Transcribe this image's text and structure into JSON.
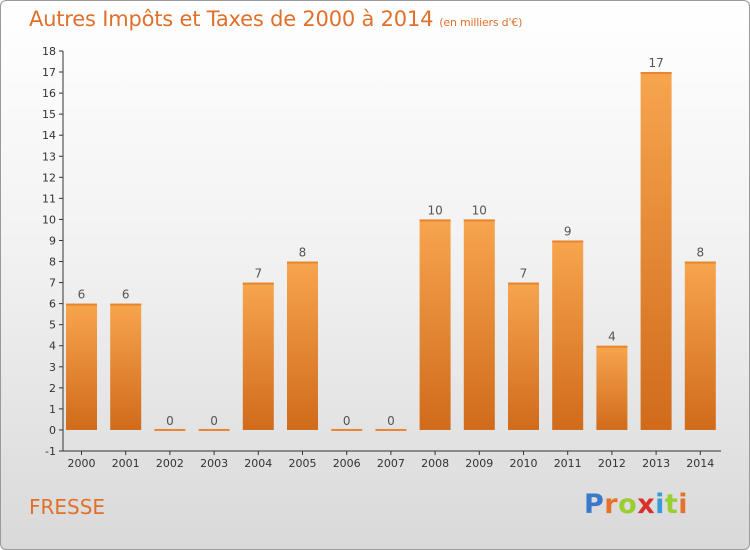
{
  "header": {
    "title": "Autres Impôts et Taxes de 2000 à 2014",
    "unit": "(en milliers d'€)"
  },
  "footer": {
    "place": "FRESSE",
    "logo_letters": [
      "P",
      "r",
      "o",
      "x",
      "i",
      "t",
      "i"
    ],
    "logo_colors": [
      "#3a78c9",
      "#e8702a",
      "#9acd32",
      "#d9302a",
      "#3a9ad9",
      "#9acd32",
      "#e8702a"
    ]
  },
  "colors": {
    "bar_top": "#f7a54e",
    "bar_bottom": "#d06b1b",
    "title": "#e0702a",
    "axis": "#333333"
  },
  "chart_data": {
    "type": "bar",
    "categories": [
      "2000",
      "2001",
      "2002",
      "2003",
      "2004",
      "2005",
      "2006",
      "2007",
      "2008",
      "2009",
      "2010",
      "2011",
      "2012",
      "2013",
      "2014"
    ],
    "values": [
      6,
      6,
      0,
      0,
      7,
      8,
      0,
      0,
      10,
      10,
      7,
      9,
      4,
      17,
      8
    ],
    "data_labels": [
      "6",
      "6",
      "0",
      "0",
      "7",
      "8",
      "0",
      "0",
      "10",
      "10",
      "7",
      "9",
      "4",
      "17",
      "8"
    ],
    "yticks": [
      -1,
      0,
      1,
      2,
      3,
      4,
      5,
      6,
      7,
      8,
      9,
      10,
      11,
      12,
      13,
      14,
      15,
      16,
      17,
      18
    ],
    "ylim": [
      -1,
      18
    ],
    "title": "Autres Impôts et Taxes de 2000 à 2014",
    "xlabel": "",
    "ylabel": "",
    "grid": false
  }
}
